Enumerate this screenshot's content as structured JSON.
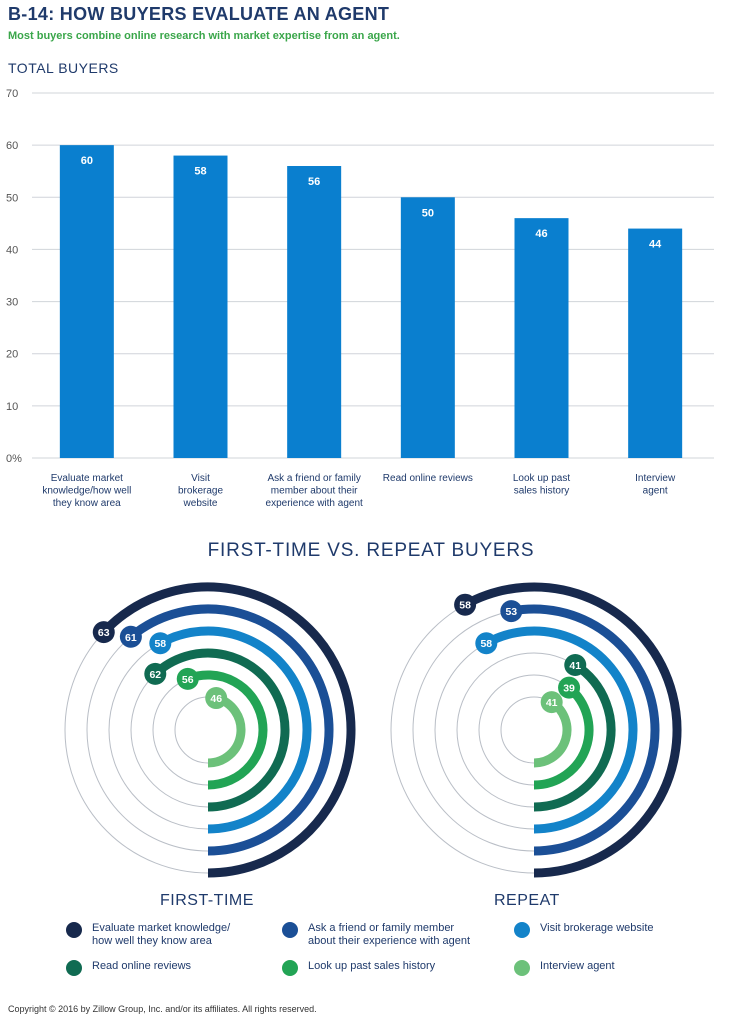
{
  "header": {
    "title": "B-14: HOW BUYERS EVALUATE AN AGENT",
    "subtitle": "Most buyers combine online research with market expertise from an agent."
  },
  "total_section_label": "TOTAL BUYERS",
  "comparison_title": "FIRST-TIME VS. REPEAT BUYERS",
  "colors": {
    "bar": "#0a7fcf",
    "grid": "#d0d4da",
    "ring_bg": "#b9bec6",
    "series": [
      "#17294d",
      "#1b4f96",
      "#1383c9",
      "#106b52",
      "#22a455",
      "#6cc17a"
    ]
  },
  "chart_data": [
    {
      "type": "bar",
      "title": "TOTAL BUYERS",
      "categories": [
        [
          "Evaluate market",
          "knowledge/how well",
          "they know area"
        ],
        [
          "Visit",
          "brokerage",
          "website"
        ],
        [
          "Ask a friend or family",
          "member about their",
          "experience with agent"
        ],
        [
          "Read online reviews"
        ],
        [
          "Look up past",
          "sales history"
        ],
        [
          "Interview",
          "agent"
        ]
      ],
      "values": [
        60,
        58,
        56,
        50,
        46,
        44
      ],
      "ylim": [
        0,
        70
      ],
      "yticks": [
        "0%",
        "10",
        "20",
        "30",
        "40",
        "50",
        "60",
        "70"
      ],
      "grid": true
    },
    {
      "type": "radial-bar",
      "title": "FIRST-TIME",
      "series": [
        "Evaluate market knowledge/ how well they know area",
        "Ask a friend or family member about their experience with agent",
        "Visit brokerage website",
        "Read online reviews",
        "Look up past sales history",
        "Interview agent"
      ],
      "values": [
        63,
        61,
        58,
        62,
        56,
        46
      ]
    },
    {
      "type": "radial-bar",
      "title": "REPEAT",
      "series": [
        "Evaluate market knowledge/ how well they know area",
        "Ask a friend or family member about their experience with agent",
        "Visit brokerage website",
        "Read online reviews",
        "Look up past sales history",
        "Interview agent"
      ],
      "values": [
        58,
        53,
        58,
        41,
        39,
        41
      ]
    }
  ],
  "legend": [
    {
      "lines": [
        "Evaluate market knowledge/",
        "how well they know area"
      ],
      "color": "#17294d"
    },
    {
      "lines": [
        "Ask a friend or family member",
        "about their experience with agent"
      ],
      "color": "#1b4f96"
    },
    {
      "lines": [
        "Visit brokerage website"
      ],
      "color": "#1383c9"
    },
    {
      "lines": [
        "Read online reviews"
      ],
      "color": "#106b52"
    },
    {
      "lines": [
        "Look up past sales history"
      ],
      "color": "#22a455"
    },
    {
      "lines": [
        "Interview agent"
      ],
      "color": "#6cc17a"
    }
  ],
  "copyright": "Copyright © 2016 by Zillow Group, Inc. and/or its affiliates. All rights reserved."
}
